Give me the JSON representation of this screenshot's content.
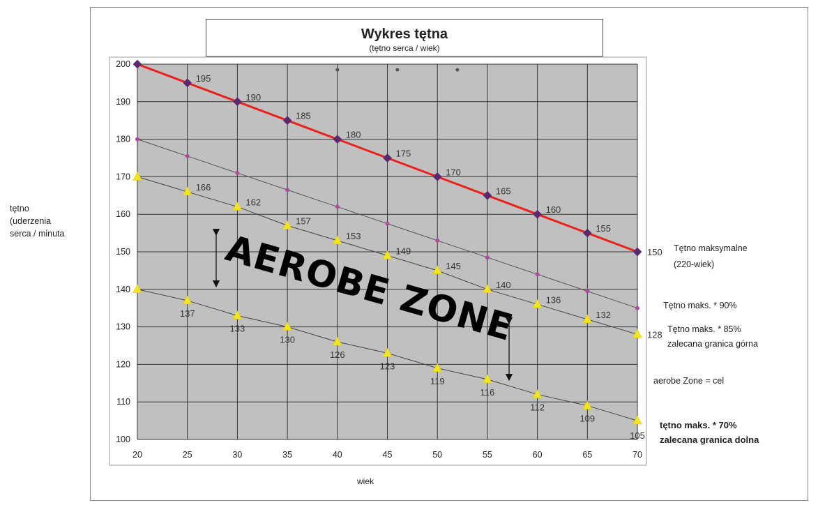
{
  "chart_data": {
    "type": "line",
    "title": "Wykres tętna",
    "subtitle": "(tętno serca / wiek)",
    "ylabel_lines": [
      "tętno",
      "(uderzenia",
      "serca / minuta"
    ],
    "xlabel": "wiek",
    "x": [
      20,
      25,
      30,
      35,
      40,
      45,
      50,
      55,
      60,
      65,
      70
    ],
    "xlim": [
      20,
      70
    ],
    "ylim": [
      100,
      200
    ],
    "yticks": [
      100,
      110,
      120,
      130,
      140,
      150,
      160,
      170,
      180,
      190,
      200
    ],
    "grid": true,
    "annotation": "AEROBE ZONE",
    "series": [
      {
        "name": "Tętno maksymalne (220-wiek)",
        "values": [
          200,
          195,
          190,
          185,
          180,
          175,
          170,
          165,
          160,
          155,
          150
        ],
        "point_labels": [
          "",
          "195",
          "190",
          "185",
          "180",
          "175",
          "170",
          "165",
          "160",
          "155",
          "150"
        ],
        "color": "#e8211c",
        "marker_color": "#5b2a6e"
      },
      {
        "name": "Tętno maks. * 90%",
        "values": [
          180,
          175.5,
          171,
          166.5,
          162,
          157.5,
          153,
          148.5,
          144,
          139.5,
          135
        ],
        "color": "#555555",
        "marker_color": "#b04a9a"
      },
      {
        "name": "Tętno maks. * 85% zalecana granica górna",
        "values": [
          170,
          166,
          162,
          157,
          153,
          149,
          145,
          140,
          136,
          132,
          128
        ],
        "point_labels": [
          "",
          "166",
          "162",
          "157",
          "153",
          "149",
          "145",
          "140",
          "136",
          "132",
          "128"
        ],
        "color": "#444444",
        "marker_color": "#f2e51e"
      },
      {
        "name": "tętno maks. * 70% zalecana granica dolna",
        "values": [
          140,
          137,
          133,
          130,
          126,
          123,
          119,
          116,
          112,
          109,
          105
        ],
        "point_labels": [
          "",
          "137",
          "133",
          "130",
          "126",
          "123",
          "119",
          "116",
          "112",
          "109",
          "105"
        ],
        "color": "#444444",
        "marker_color": "#f2e51e"
      }
    ],
    "right_labels": {
      "max": [
        "Tętno maksymalne",
        "(220-wiek)"
      ],
      "p90": [
        "Tętno maks. * 90%"
      ],
      "p85": [
        "Tętno maks. * 85%",
        "zalecana granica górna"
      ],
      "zone": [
        "aerobe Zone = cel"
      ],
      "p70": [
        "tętno maks. * 70%",
        "zalecana granica dolna"
      ]
    }
  }
}
